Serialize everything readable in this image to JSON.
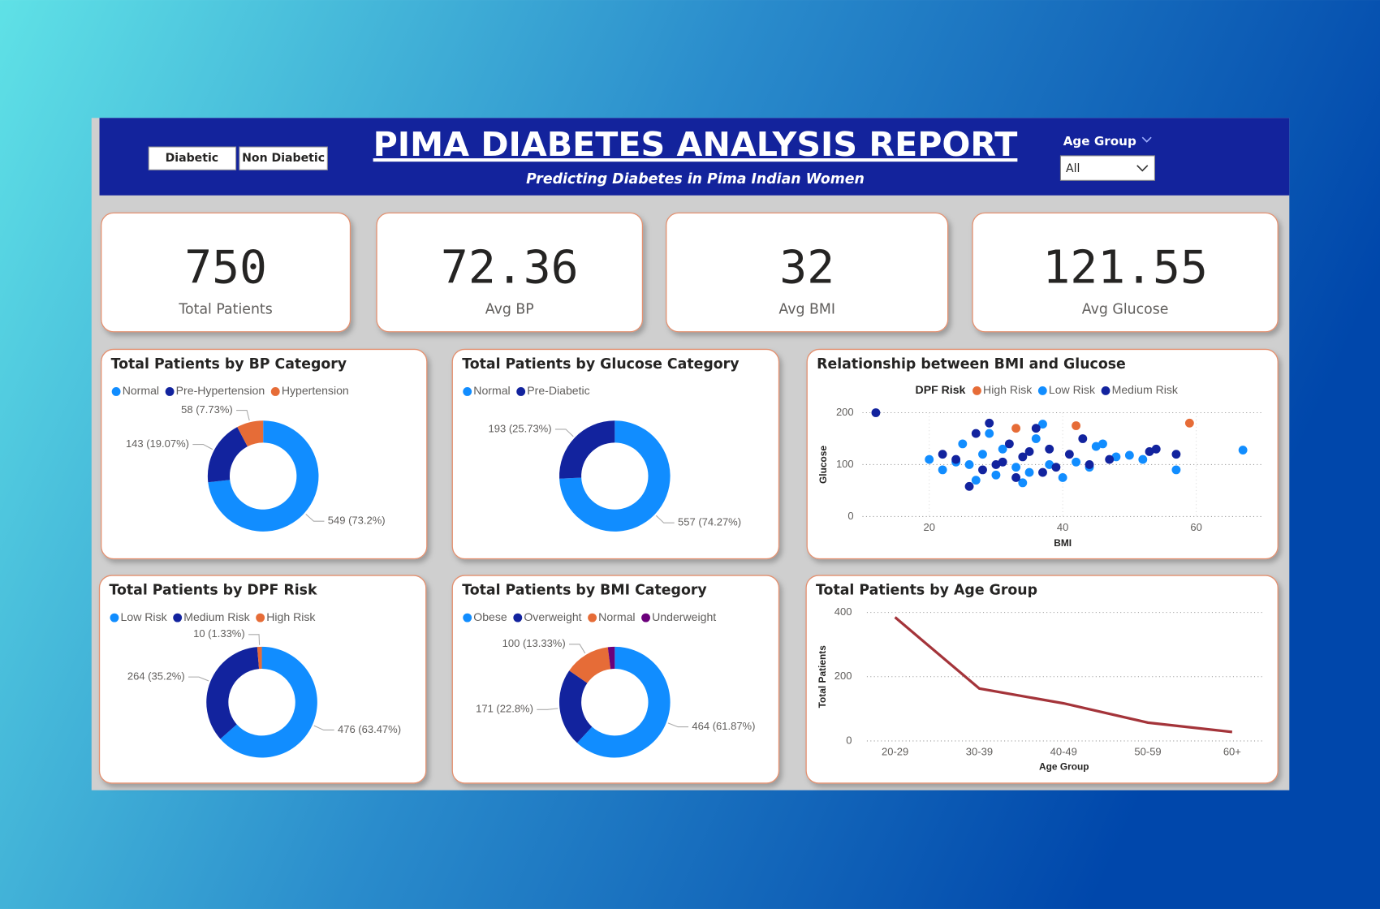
{
  "header": {
    "title": "PIMA DIABETES ANALYSIS REPORT",
    "subtitle": "Predicting Diabetes in Pima Indian Women"
  },
  "buttons": [
    "Diabetic",
    "Non Diabetic"
  ],
  "slicer": {
    "label": "Age Group",
    "value": "All"
  },
  "kpis": [
    {
      "value": 750,
      "label": "Total Patients"
    },
    {
      "value": 72.36,
      "label": "Avg BP"
    },
    {
      "value": 32,
      "label": "Avg BMI"
    },
    {
      "value": 121.55,
      "label": "Avg Glucose"
    }
  ],
  "chart_data": [
    {
      "type": "donut",
      "title": "Total Patients by BP Category",
      "categories": [
        "Normal",
        "Pre-Hypertension",
        "Hypertension"
      ],
      "values": [
        549,
        143,
        58
      ],
      "value_labels": [
        "549 (73.2%)",
        "143 (19.07%)",
        "58 (7.73%)"
      ],
      "colors": [
        "#118dff",
        "#12239e",
        "#e66c37"
      ]
    },
    {
      "type": "donut",
      "title": "Total Patients by Glucose Category",
      "categories": [
        "Normal",
        "Pre-Diabetic"
      ],
      "values": [
        557,
        193
      ],
      "value_labels": [
        "557 (74.27%)",
        "193 (25.73%)"
      ],
      "colors": [
        "#118dff",
        "#12239e"
      ]
    },
    {
      "type": "scatter",
      "title": "Relationship between BMI and Glucose",
      "legend_title": "DPF Risk",
      "x_label": "BMI",
      "y_label": "Glucose",
      "xlim": [
        10,
        70
      ],
      "xticks": [
        20,
        40,
        60
      ],
      "ylim": [
        0,
        200
      ],
      "yticks": [
        0,
        100,
        200
      ],
      "series": [
        {
          "name": "High Risk",
          "color": "#e66c37",
          "x": [
            59,
            42,
            33
          ],
          "values": [
            180,
            175,
            170
          ]
        },
        {
          "name": "Low Risk",
          "color": "#118dff",
          "x": [
            67,
            57,
            52,
            48,
            45,
            38,
            33,
            28,
            24,
            22,
            30,
            36,
            42,
            27,
            31,
            35,
            25,
            44,
            20,
            29,
            40,
            34,
            46,
            37,
            26,
            50
          ],
          "values": [
            128,
            90,
            110,
            115,
            135,
            100,
            95,
            120,
            105,
            90,
            80,
            150,
            105,
            70,
            130,
            85,
            140,
            95,
            110,
            160,
            75,
            65,
            140,
            178,
            100,
            118
          ]
        },
        {
          "name": "Medium Risk",
          "color": "#12239e",
          "x": [
            57,
            53,
            12,
            26,
            30,
            34,
            38,
            41,
            24,
            28,
            32,
            36,
            44,
            22,
            39,
            47,
            33,
            29,
            43,
            37,
            54,
            27,
            35,
            31
          ],
          "values": [
            120,
            125,
            200,
            58,
            100,
            115,
            130,
            120,
            110,
            90,
            140,
            170,
            100,
            120,
            95,
            110,
            75,
            180,
            150,
            85,
            130,
            160,
            125,
            105
          ]
        }
      ]
    },
    {
      "type": "donut",
      "title": "Total Patients by DPF Risk",
      "categories": [
        "Low Risk",
        "Medium Risk",
        "High Risk"
      ],
      "values": [
        476,
        264,
        10
      ],
      "value_labels": [
        "476 (63.47%)",
        "264 (35.2%)",
        "10 (1.33%)"
      ],
      "colors": [
        "#118dff",
        "#12239e",
        "#e66c37"
      ]
    },
    {
      "type": "donut",
      "title": "Total Patients by BMI Category",
      "categories": [
        "Obese",
        "Overweight",
        "Normal",
        "Underweight"
      ],
      "values": [
        464,
        171,
        100,
        15
      ],
      "value_labels": [
        "464 (61.87%)",
        "171 (22.8%)",
        "100 (13.33%)",
        null
      ],
      "colors": [
        "#118dff",
        "#12239e",
        "#e66c37",
        "#6b007b"
      ]
    },
    {
      "type": "line",
      "title": "Total Patients by Age Group",
      "x_label": "Age Group",
      "y_label": "Total Patients",
      "categories": [
        "20-29",
        "30-39",
        "40-49",
        "50-59",
        "60+"
      ],
      "values": [
        385,
        163,
        117,
        57,
        28
      ],
      "color": "#a4343a",
      "ylim": [
        0,
        400
      ],
      "yticks": [
        0,
        200,
        400
      ]
    }
  ]
}
